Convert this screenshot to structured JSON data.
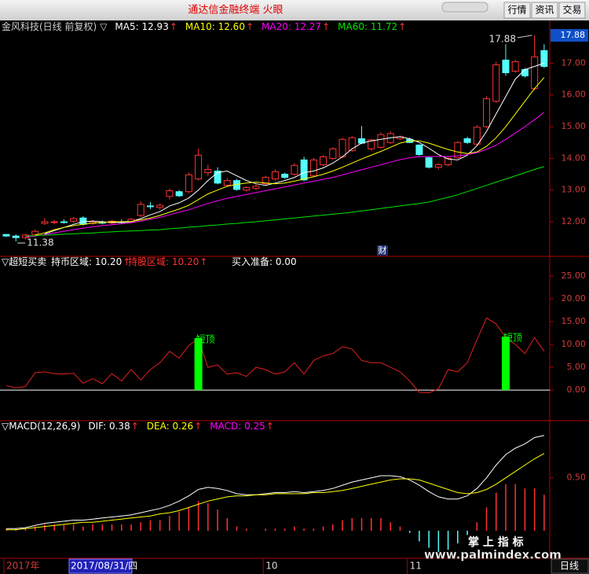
{
  "window": {
    "title": "通达信金融终端 火眼",
    "buttons": [
      "行情",
      "资讯",
      "交易"
    ]
  },
  "chart_data": [
    {
      "type": "candlestick",
      "title": "金风科技(日线 前复权)",
      "marker": "▽",
      "categories": [
        "2017年",
        null,
        null,
        null,
        null,
        null,
        null,
        null,
        null,
        null,
        null,
        null,
        null,
        null,
        null,
        null,
        null,
        null,
        null,
        null,
        null,
        null,
        null,
        null,
        null,
        null,
        null,
        "10",
        null,
        null,
        null,
        null,
        null,
        null,
        null,
        null,
        null,
        null,
        null,
        null,
        null,
        null,
        "11",
        null,
        null,
        null,
        null,
        null,
        null,
        null,
        null,
        null,
        null,
        null,
        null,
        null,
        null
      ],
      "open": [
        11.6,
        11.55,
        11.5,
        11.6,
        11.95,
        11.98,
        12.0,
        12.02,
        12.12,
        11.95,
        11.98,
        11.96,
        12.0,
        12.0,
        12.2,
        12.5,
        12.45,
        12.8,
        12.95,
        12.95,
        13.35,
        13.55,
        13.6,
        13.15,
        13.3,
        13.0,
        13.05,
        13.2,
        13.35,
        13.5,
        13.5,
        13.95,
        13.45,
        13.8,
        14.0,
        14.05,
        14.25,
        14.62,
        14.3,
        14.35,
        14.5,
        14.62,
        14.6,
        14.42,
        14.02,
        13.72,
        13.8,
        14.02,
        14.62,
        14.45,
        15.0,
        15.8,
        17.1,
        16.75,
        16.8,
        16.2,
        17.4
      ],
      "high": [
        11.62,
        11.6,
        11.62,
        11.75,
        12.12,
        12.06,
        12.08,
        12.15,
        12.18,
        12.05,
        12.04,
        12.06,
        12.08,
        12.12,
        12.65,
        12.62,
        12.58,
        13.05,
        13.0,
        13.55,
        14.3,
        13.8,
        13.72,
        13.38,
        13.35,
        13.12,
        13.18,
        13.45,
        13.65,
        13.55,
        13.85,
        14.05,
        14.02,
        14.1,
        14.35,
        14.65,
        14.7,
        15.02,
        14.62,
        14.82,
        14.85,
        14.72,
        14.65,
        14.45,
        14.05,
        13.85,
        14.05,
        14.55,
        14.68,
        15.05,
        15.95,
        17.05,
        17.6,
        17.1,
        16.85,
        17.88,
        17.6
      ],
      "low": [
        11.52,
        11.38,
        11.45,
        11.55,
        11.9,
        11.92,
        11.94,
        11.96,
        11.88,
        11.9,
        11.92,
        11.9,
        11.94,
        11.96,
        12.15,
        12.4,
        12.38,
        12.7,
        12.78,
        12.9,
        13.3,
        13.45,
        13.18,
        13.1,
        12.98,
        12.95,
        13.0,
        13.15,
        13.3,
        13.35,
        13.45,
        13.28,
        13.4,
        13.75,
        13.95,
        14.0,
        14.2,
        14.45,
        14.25,
        14.3,
        14.45,
        14.58,
        14.48,
        14.08,
        13.68,
        13.65,
        13.75,
        13.98,
        14.45,
        14.4,
        14.95,
        15.75,
        16.6,
        16.7,
        16.55,
        16.15,
        16.85
      ],
      "close": [
        11.55,
        11.5,
        11.58,
        11.7,
        12.0,
        12.0,
        11.98,
        12.1,
        11.92,
        12.0,
        11.96,
        12.02,
        11.98,
        12.08,
        12.55,
        12.48,
        12.52,
        12.98,
        12.82,
        13.48,
        14.1,
        13.65,
        13.22,
        13.3,
        13.02,
        13.08,
        13.12,
        13.4,
        13.58,
        13.4,
        13.78,
        13.32,
        13.95,
        14.05,
        14.3,
        14.6,
        14.65,
        14.48,
        14.58,
        14.75,
        14.78,
        14.68,
        14.5,
        14.12,
        13.72,
        13.8,
        14.0,
        14.5,
        14.5,
        14.98,
        15.88,
        16.95,
        16.7,
        17.05,
        16.6,
        17.2,
        16.9
      ],
      "up_color": "#ff3232",
      "down_color": "#54fcfc",
      "series": [
        {
          "legend": "MA5: 12.93",
          "trend": "↑",
          "color": "#ffffff",
          "values": [
            null,
            null,
            null,
            null,
            11.62,
            11.72,
            11.82,
            11.92,
            12.0,
            12.02,
            12.0,
            11.98,
            11.98,
            12.0,
            12.1,
            12.22,
            12.32,
            12.5,
            12.6,
            12.75,
            13.0,
            13.3,
            13.55,
            13.6,
            13.45,
            13.3,
            13.2,
            13.15,
            13.22,
            13.3,
            13.4,
            13.55,
            13.6,
            13.7,
            13.85,
            14.05,
            14.3,
            14.48,
            14.55,
            14.6,
            14.65,
            14.68,
            14.62,
            14.5,
            14.32,
            14.12,
            13.98,
            13.95,
            14.1,
            14.4,
            14.85,
            15.4,
            15.95,
            16.5,
            16.8,
            16.9,
            17.0
          ]
        },
        {
          "legend": "MA10: 12.60",
          "trend": "↑",
          "color": "#ffff00",
          "values": [
            null,
            null,
            null,
            11.58,
            11.65,
            11.75,
            11.82,
            11.88,
            11.92,
            11.96,
            11.98,
            12.0,
            12.0,
            12.01,
            12.06,
            12.12,
            12.2,
            12.3,
            12.4,
            12.52,
            12.7,
            12.88,
            13.0,
            13.12,
            13.18,
            13.22,
            13.25,
            13.22,
            13.2,
            13.22,
            13.28,
            13.35,
            13.42,
            13.5,
            13.6,
            13.72,
            13.85,
            13.98,
            14.1,
            14.22,
            14.35,
            14.48,
            14.55,
            14.55,
            14.48,
            14.38,
            14.28,
            14.2,
            14.15,
            14.2,
            14.38,
            14.65,
            15.0,
            15.4,
            15.8,
            16.2,
            16.55
          ]
        },
        {
          "legend": "MA20: 12.27",
          "trend": "↑",
          "color": "#ff00ff",
          "values": [
            null,
            null,
            11.52,
            11.55,
            11.6,
            11.65,
            11.7,
            11.75,
            11.8,
            11.84,
            11.88,
            11.91,
            11.94,
            11.97,
            12.02,
            12.08,
            12.14,
            12.22,
            12.3,
            12.38,
            12.48,
            12.58,
            12.66,
            12.74,
            12.8,
            12.86,
            12.92,
            12.98,
            13.04,
            13.1,
            13.16,
            13.22,
            13.28,
            13.34,
            13.4,
            13.48,
            13.56,
            13.64,
            13.72,
            13.8,
            13.88,
            13.96,
            14.02,
            14.05,
            14.06,
            14.06,
            14.06,
            14.08,
            14.12,
            14.18,
            14.28,
            14.42,
            14.6,
            14.8,
            15.0,
            15.22,
            15.45
          ]
        },
        {
          "legend": "MA60: 11.72",
          "trend": "↑",
          "color": "#00e600",
          "values": [
            null,
            null,
            11.55,
            11.56,
            11.58,
            11.59,
            11.61,
            11.62,
            11.64,
            11.65,
            11.67,
            11.68,
            11.7,
            11.71,
            11.72,
            11.74,
            11.75,
            11.78,
            11.8,
            11.83,
            11.85,
            11.88,
            11.9,
            11.93,
            11.95,
            11.98,
            12.0,
            12.03,
            12.06,
            12.09,
            12.12,
            12.15,
            12.18,
            12.21,
            12.24,
            12.27,
            12.3,
            12.34,
            12.38,
            12.42,
            12.46,
            12.5,
            12.54,
            12.58,
            12.62,
            12.7,
            12.77,
            12.85,
            12.95,
            13.05,
            13.15,
            13.25,
            13.35,
            13.45,
            13.55,
            13.65,
            13.74
          ]
        }
      ],
      "ylim": [
        10.91,
        18.3
      ],
      "yticks": [
        {
          "value": 12,
          "label": "12.00"
        },
        {
          "value": 13,
          "label": "13.00"
        },
        {
          "value": 14,
          "label": "14.00"
        },
        {
          "value": 15,
          "label": "15.00"
        },
        {
          "value": 16,
          "label": "16.00"
        },
        {
          "value": 17,
          "label": "17.00"
        }
      ],
      "last_marker": {
        "value": 17.88,
        "label": "17.88"
      },
      "event_marker": "财",
      "cursor_label": "2017/08/31/四",
      "period": "日线"
    },
    {
      "type": "line",
      "title": "▽超短买卖",
      "readouts": [
        {
          "text": "持币区域: 10.20",
          "trend": "↑",
          "color": "#ffffff"
        },
        {
          "text": "持股区域: 10.20",
          "trend": "↑",
          "color": "#ff3232"
        },
        {
          "text": "买入准备: 0.00",
          "color": "#ffffff"
        }
      ],
      "series": [
        {
          "color": "#e02020",
          "values": [
            1.0,
            0.5,
            0.8,
            3.8,
            4.0,
            3.6,
            3.5,
            3.7,
            1.5,
            2.5,
            1.4,
            3.6,
            2.0,
            4.5,
            2.2,
            4.5,
            6.0,
            8.5,
            7.0,
            9.8,
            11.2,
            5.0,
            5.5,
            3.5,
            3.8,
            3.0,
            5.0,
            4.5,
            3.5,
            4.0,
            6.0,
            3.5,
            6.5,
            7.5,
            8.0,
            9.5,
            9.0,
            6.5,
            6.0,
            6.0,
            5.0,
            4.0,
            2.0,
            -0.5,
            -0.6,
            0.3,
            4.5,
            4.0,
            6.0,
            11.0,
            15.8,
            14.5,
            11.5,
            10.0,
            8.0,
            11.5,
            8.5
          ]
        }
      ],
      "signal": {
        "label": "短顶",
        "color": "#00ff00",
        "values": [
          null,
          null,
          null,
          null,
          null,
          null,
          null,
          null,
          null,
          null,
          null,
          null,
          null,
          null,
          null,
          null,
          null,
          null,
          null,
          null,
          11.4,
          null,
          null,
          null,
          null,
          null,
          null,
          null,
          null,
          null,
          null,
          null,
          null,
          null,
          null,
          null,
          null,
          null,
          null,
          null,
          null,
          null,
          null,
          null,
          null,
          null,
          null,
          null,
          null,
          null,
          null,
          null,
          11.7,
          null,
          null,
          null,
          null
        ]
      },
      "ylim": [
        -6.7,
        29.3
      ],
      "yticks": [
        {
          "value": 0,
          "label": "0.00"
        },
        {
          "value": 5,
          "label": "5.00"
        },
        {
          "value": 10,
          "label": "10.00"
        },
        {
          "value": 15,
          "label": "15.00"
        },
        {
          "value": 20,
          "label": "20.00"
        },
        {
          "value": 25,
          "label": "25.00"
        }
      ]
    },
    {
      "type": "macd",
      "title": "▽MACD(12,26,9)",
      "series": [
        {
          "legend": "DIF: 0.38",
          "trend": "↑",
          "color": "#ffffff",
          "values": [
            0.02,
            0.02,
            0.03,
            0.05,
            0.07,
            0.08,
            0.09,
            0.1,
            0.1,
            0.11,
            0.12,
            0.13,
            0.14,
            0.15,
            0.17,
            0.19,
            0.21,
            0.24,
            0.28,
            0.33,
            0.39,
            0.41,
            0.4,
            0.38,
            0.35,
            0.34,
            0.34,
            0.35,
            0.36,
            0.36,
            0.37,
            0.36,
            0.37,
            0.38,
            0.4,
            0.43,
            0.46,
            0.48,
            0.5,
            0.52,
            0.52,
            0.51,
            0.48,
            0.43,
            0.37,
            0.32,
            0.3,
            0.3,
            0.33,
            0.4,
            0.5,
            0.62,
            0.72,
            0.78,
            0.82,
            0.88,
            0.9
          ]
        },
        {
          "legend": "DEA: 0.26",
          "trend": "↑",
          "color": "#ffff00",
          "values": [
            0.01,
            0.01,
            0.02,
            0.03,
            0.04,
            0.05,
            0.06,
            0.07,
            0.08,
            0.08,
            0.09,
            0.1,
            0.11,
            0.12,
            0.13,
            0.14,
            0.16,
            0.17,
            0.19,
            0.22,
            0.25,
            0.28,
            0.3,
            0.32,
            0.33,
            0.33,
            0.34,
            0.34,
            0.35,
            0.35,
            0.35,
            0.35,
            0.36,
            0.36,
            0.37,
            0.38,
            0.4,
            0.42,
            0.44,
            0.46,
            0.48,
            0.49,
            0.49,
            0.48,
            0.45,
            0.42,
            0.39,
            0.36,
            0.35,
            0.36,
            0.39,
            0.44,
            0.5,
            0.56,
            0.62,
            0.68,
            0.73
          ]
        }
      ],
      "bars": {
        "legend": "MACD: 0.25",
        "trend": "↑",
        "color": "#ff00ff",
        "up_color": "#ff3232",
        "down_color": "#54fcfc",
        "values": [
          0.02,
          0.02,
          0.02,
          0.04,
          0.06,
          0.06,
          0.06,
          0.06,
          0.04,
          0.06,
          0.06,
          0.06,
          0.06,
          0.06,
          0.08,
          0.1,
          0.1,
          0.14,
          0.18,
          0.22,
          0.28,
          0.26,
          0.2,
          0.12,
          0.04,
          0.02,
          0.0,
          0.02,
          0.02,
          0.02,
          0.04,
          0.02,
          0.02,
          0.04,
          0.06,
          0.1,
          0.12,
          0.12,
          0.12,
          0.12,
          0.08,
          0.04,
          -0.02,
          -0.1,
          -0.16,
          -0.2,
          -0.18,
          -0.12,
          -0.04,
          0.08,
          0.22,
          0.36,
          0.44,
          0.44,
          0.4,
          0.4,
          0.34
        ]
      },
      "ylim": [
        -0.26,
        1.04
      ],
      "yticks": [
        {
          "value": 0.5,
          "label": "0.50"
        }
      ]
    }
  ],
  "watermark": {
    "title": "掌 上 指 标",
    "url": "www.palmindex.com"
  }
}
